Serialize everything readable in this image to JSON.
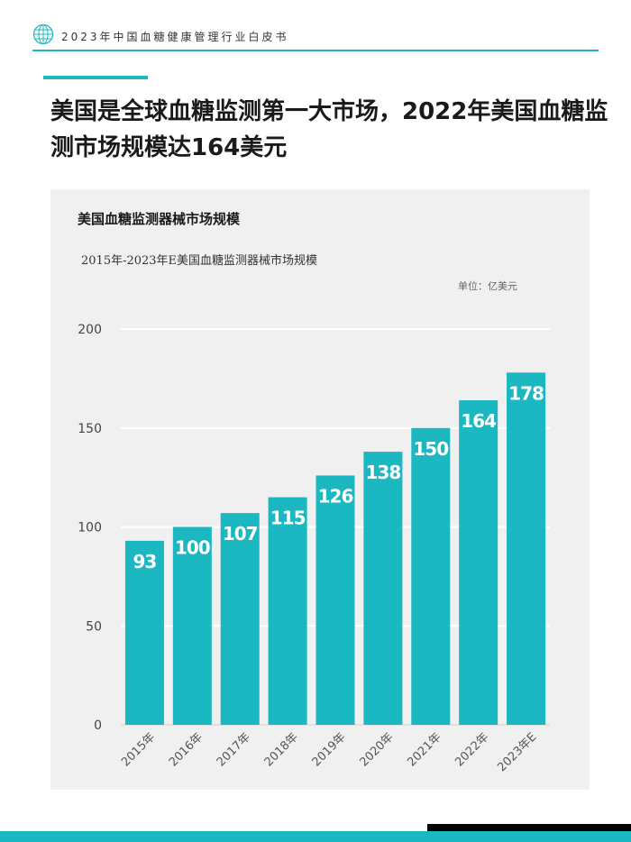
{
  "header": {
    "logo_icon": "globe-logo-icon",
    "title": "2023年中国血糖健康管理行业白皮书"
  },
  "headline": "美国是全球血糖监测第一大市场，2022年美国血糖监测市场规模达164美元",
  "colors": {
    "accent": "#1bb8c2",
    "bar": "#1bb8c2",
    "panel": "#f0f0f0",
    "footer_dark": "#000000"
  },
  "chart_data": {
    "type": "bar",
    "title": "美国血糖监测器械市场规模",
    "subtitle": "2015年-2023年E美国血糖监测器械市场规模",
    "unit": "单位：亿美元",
    "categories": [
      "2015年",
      "2016年",
      "2017年",
      "2018年",
      "2019年",
      "2020年",
      "2021年",
      "2022年",
      "2023年E"
    ],
    "values": [
      93,
      100,
      107,
      115,
      126,
      138,
      150,
      164,
      178
    ],
    "ylim": [
      0,
      200
    ],
    "yticks": [
      0,
      50,
      100,
      150,
      200
    ],
    "grid": true,
    "data_labels": "inside-top"
  }
}
